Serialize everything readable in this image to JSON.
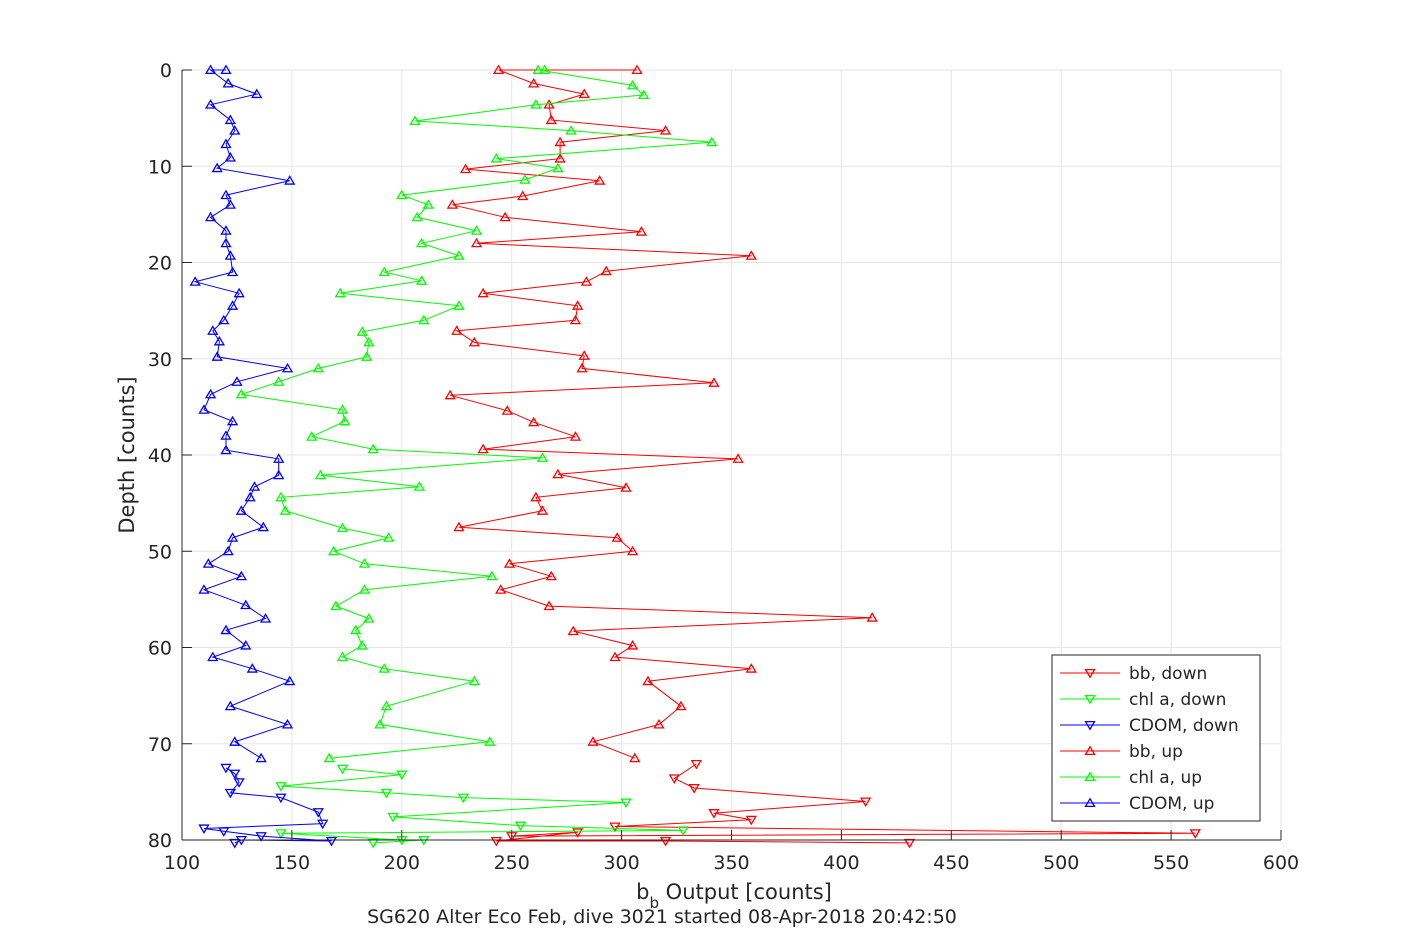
{
  "chart_data": {
    "type": "line",
    "xlabel_prefix": "b",
    "xlabel_sub": "b",
    "xlabel_rest": " Output [counts]",
    "ylabel": "Depth [counts]",
    "footer": "SG620 Alter Eco Feb, dive 3021 started 08-Apr-2018 20:42:50",
    "xlim": [
      100,
      600
    ],
    "ylim": [
      80,
      0
    ],
    "y_reversed": true,
    "xticks": [
      100,
      150,
      200,
      250,
      300,
      350,
      400,
      450,
      500,
      550,
      600
    ],
    "yticks": [
      0,
      10,
      20,
      30,
      40,
      50,
      60,
      70,
      80
    ],
    "grid": true,
    "legend_position": "bottom-right",
    "series": [
      {
        "name": "bb, down",
        "color": "#ff0000",
        "marker": "triangle-down",
        "points": [
          [
            334,
            72.1
          ],
          [
            324,
            73.6
          ],
          [
            333,
            74.6
          ],
          [
            411,
            76.0
          ],
          [
            342,
            77.2
          ],
          [
            359,
            77.9
          ],
          [
            297,
            78.6
          ],
          [
            561,
            79.3
          ],
          [
            250,
            79.6
          ],
          [
            280,
            79.2
          ],
          [
            243,
            80.1
          ],
          [
            320,
            80.1
          ],
          [
            431,
            80.3
          ]
        ]
      },
      {
        "name": "chl a, down",
        "color": "#00ff00",
        "marker": "triangle-down",
        "points": [
          [
            173,
            72.6
          ],
          [
            200,
            73.2
          ],
          [
            145,
            74.4
          ],
          [
            193,
            75.1
          ],
          [
            228,
            75.6
          ],
          [
            302,
            76.1
          ],
          [
            196,
            77.6
          ],
          [
            254,
            78.5
          ],
          [
            328,
            79.0
          ],
          [
            145,
            79.3
          ],
          [
            200,
            80.0
          ],
          [
            210,
            80.0
          ],
          [
            187,
            80.3
          ]
        ]
      },
      {
        "name": "CDOM, down",
        "color": "#0000ff",
        "marker": "triangle-down",
        "points": [
          [
            120,
            72.5
          ],
          [
            124,
            73.1
          ],
          [
            126,
            74.0
          ],
          [
            122,
            75.1
          ],
          [
            145,
            75.6
          ],
          [
            162,
            77.1
          ],
          [
            164,
            78.3
          ],
          [
            110,
            78.8
          ],
          [
            119,
            79.1
          ],
          [
            136,
            79.6
          ],
          [
            168,
            80.1
          ],
          [
            127,
            80.0
          ],
          [
            124,
            80.3
          ]
        ]
      },
      {
        "name": "bb, up",
        "color": "#ff0000",
        "marker": "triangle-up",
        "points": [
          [
            307,
            0.0
          ],
          [
            244,
            0.0
          ],
          [
            260,
            1.4
          ],
          [
            283,
            2.5
          ],
          [
            267,
            3.6
          ],
          [
            268,
            5.2
          ],
          [
            320,
            6.3
          ],
          [
            272,
            7.5
          ],
          [
            272,
            9.2
          ],
          [
            229,
            10.3
          ],
          [
            290,
            11.5
          ],
          [
            255,
            13.1
          ],
          [
            223,
            14.0
          ],
          [
            247,
            15.3
          ],
          [
            309,
            16.8
          ],
          [
            234,
            18.0
          ],
          [
            359,
            19.3
          ],
          [
            293,
            20.9
          ],
          [
            284,
            22.0
          ],
          [
            237,
            23.2
          ],
          [
            280,
            24.5
          ],
          [
            279,
            26.0
          ],
          [
            225,
            27.1
          ],
          [
            233,
            28.3
          ],
          [
            283,
            29.7
          ],
          [
            282,
            31.0
          ],
          [
            342,
            32.5
          ],
          [
            222,
            33.8
          ],
          [
            248,
            35.4
          ],
          [
            260,
            36.6
          ],
          [
            279,
            38.1
          ],
          [
            237,
            39.4
          ],
          [
            353,
            40.4
          ],
          [
            271,
            42.0
          ],
          [
            302,
            43.4
          ],
          [
            261,
            44.4
          ],
          [
            264,
            45.8
          ],
          [
            226,
            47.5
          ],
          [
            298,
            48.6
          ],
          [
            305,
            50.0
          ],
          [
            249,
            51.3
          ],
          [
            268,
            52.6
          ],
          [
            245,
            54.0
          ],
          [
            267,
            55.7
          ],
          [
            414,
            56.9
          ],
          [
            278,
            58.3
          ],
          [
            305,
            59.8
          ],
          [
            297,
            61.0
          ],
          [
            359,
            62.2
          ],
          [
            312,
            63.5
          ],
          [
            327,
            66.1
          ],
          [
            317,
            68.0
          ],
          [
            287,
            69.8
          ],
          [
            306,
            71.5
          ]
        ]
      },
      {
        "name": "chl a, up",
        "color": "#00ff00",
        "marker": "triangle-up",
        "points": [
          [
            265,
            0.0
          ],
          [
            262,
            0.0
          ],
          [
            305,
            1.6
          ],
          [
            310,
            2.6
          ],
          [
            261,
            3.6
          ],
          [
            206,
            5.3
          ],
          [
            277,
            6.3
          ],
          [
            341,
            7.5
          ],
          [
            243,
            9.2
          ],
          [
            271,
            10.2
          ],
          [
            256,
            11.4
          ],
          [
            200,
            13.0
          ],
          [
            212,
            14.0
          ],
          [
            207,
            15.3
          ],
          [
            234,
            16.7
          ],
          [
            209,
            18.0
          ],
          [
            226,
            19.3
          ],
          [
            192,
            21.0
          ],
          [
            209,
            21.9
          ],
          [
            172,
            23.2
          ],
          [
            226,
            24.5
          ],
          [
            210,
            26.0
          ],
          [
            182,
            27.2
          ],
          [
            185,
            28.3
          ],
          [
            184,
            29.8
          ],
          [
            162,
            31.0
          ],
          [
            144,
            32.4
          ],
          [
            127,
            33.7
          ],
          [
            173,
            35.3
          ],
          [
            174,
            36.5
          ],
          [
            159,
            38.1
          ],
          [
            187,
            39.4
          ],
          [
            264,
            40.3
          ],
          [
            163,
            42.1
          ],
          [
            208,
            43.3
          ],
          [
            145,
            44.4
          ],
          [
            147,
            45.8
          ],
          [
            173,
            47.6
          ],
          [
            194,
            48.6
          ],
          [
            169,
            50.0
          ],
          [
            183,
            51.3
          ],
          [
            241,
            52.6
          ],
          [
            183,
            54.0
          ],
          [
            170,
            55.7
          ],
          [
            185,
            57.0
          ],
          [
            179,
            58.2
          ],
          [
            182,
            59.8
          ],
          [
            173,
            61.0
          ],
          [
            192,
            62.2
          ],
          [
            233,
            63.5
          ],
          [
            193,
            66.1
          ],
          [
            190,
            68.0
          ],
          [
            240,
            69.8
          ],
          [
            167,
            71.5
          ]
        ]
      },
      {
        "name": "CDOM, up",
        "color": "#0000ff",
        "marker": "triangle-up",
        "points": [
          [
            120,
            0.0
          ],
          [
            113,
            0.0
          ],
          [
            121,
            1.4
          ],
          [
            134,
            2.5
          ],
          [
            113,
            3.6
          ],
          [
            122,
            5.2
          ],
          [
            124,
            6.3
          ],
          [
            120,
            7.7
          ],
          [
            122,
            9.1
          ],
          [
            116,
            10.2
          ],
          [
            149,
            11.5
          ],
          [
            120,
            13.0
          ],
          [
            122,
            14.0
          ],
          [
            113,
            15.3
          ],
          [
            120,
            16.7
          ],
          [
            120,
            18.0
          ],
          [
            122,
            19.3
          ],
          [
            123,
            21.0
          ],
          [
            106,
            22.0
          ],
          [
            126,
            23.2
          ],
          [
            123,
            24.5
          ],
          [
            119,
            26.0
          ],
          [
            114,
            27.1
          ],
          [
            117,
            28.2
          ],
          [
            116,
            29.8
          ],
          [
            148,
            31.0
          ],
          [
            125,
            32.4
          ],
          [
            113,
            33.7
          ],
          [
            110,
            35.3
          ],
          [
            123,
            36.5
          ],
          [
            120,
            38.0
          ],
          [
            120,
            39.5
          ],
          [
            144,
            40.4
          ],
          [
            144,
            42.1
          ],
          [
            133,
            43.3
          ],
          [
            131,
            44.4
          ],
          [
            127,
            45.8
          ],
          [
            137,
            47.5
          ],
          [
            123,
            48.6
          ],
          [
            121,
            50.0
          ],
          [
            112,
            51.3
          ],
          [
            127,
            52.6
          ],
          [
            110,
            54.0
          ],
          [
            129,
            55.6
          ],
          [
            138,
            57.0
          ],
          [
            120,
            58.2
          ],
          [
            129,
            59.8
          ],
          [
            114,
            61.0
          ],
          [
            132,
            62.2
          ],
          [
            149,
            63.5
          ],
          [
            122,
            66.1
          ],
          [
            148,
            68.0
          ],
          [
            124,
            69.8
          ],
          [
            136,
            71.5
          ]
        ]
      }
    ]
  }
}
